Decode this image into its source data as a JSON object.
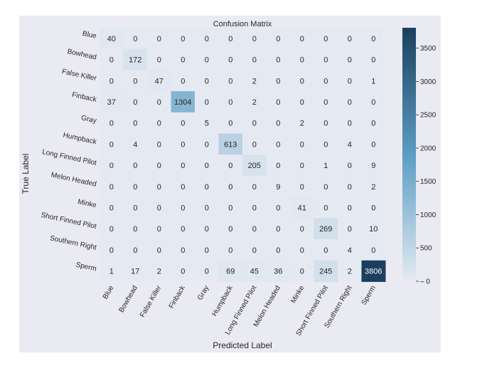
{
  "chart_data": {
    "type": "heatmap",
    "title": "Confusion Matrix",
    "xlabel": "Predicted Label",
    "ylabel": "True Label",
    "labels": [
      "Blue",
      "Bowhead",
      "False Killer",
      "Finback",
      "Gray",
      "Humpback",
      "Long Finned Pilot",
      "Melon Headed",
      "Minke",
      "Short Finned Pilot",
      "Southern Right",
      "Sperm"
    ],
    "matrix": [
      [
        40,
        0,
        0,
        0,
        0,
        0,
        0,
        0,
        0,
        0,
        0,
        0
      ],
      [
        0,
        172,
        0,
        0,
        0,
        0,
        0,
        0,
        0,
        0,
        0,
        0
      ],
      [
        0,
        0,
        47,
        0,
        0,
        0,
        2,
        0,
        0,
        0,
        0,
        1
      ],
      [
        37,
        0,
        0,
        1304,
        0,
        0,
        2,
        0,
        0,
        0,
        0,
        0
      ],
      [
        0,
        0,
        0,
        0,
        5,
        0,
        0,
        0,
        2,
        0,
        0,
        0
      ],
      [
        0,
        4,
        0,
        0,
        0,
        613,
        0,
        0,
        0,
        0,
        4,
        0
      ],
      [
        0,
        0,
        0,
        0,
        0,
        0,
        205,
        0,
        0,
        1,
        0,
        9
      ],
      [
        0,
        0,
        0,
        0,
        0,
        0,
        0,
        9,
        0,
        0,
        0,
        2
      ],
      [
        0,
        0,
        0,
        0,
        0,
        0,
        0,
        0,
        41,
        0,
        0,
        0
      ],
      [
        0,
        0,
        0,
        0,
        0,
        0,
        0,
        0,
        0,
        269,
        0,
        10
      ],
      [
        0,
        0,
        0,
        0,
        0,
        0,
        0,
        0,
        0,
        0,
        4,
        0
      ],
      [
        1,
        17,
        2,
        0,
        0,
        69,
        45,
        36,
        0,
        245,
        2,
        3806
      ]
    ],
    "colorbar": {
      "min": 0,
      "max": 3806,
      "ticks": [
        0,
        500,
        1000,
        1500,
        2000,
        2500,
        3000,
        3500
      ],
      "colors": [
        "#e5eaf2",
        "#5b9dc3",
        "#1b3f5e"
      ]
    },
    "grid": false
  }
}
